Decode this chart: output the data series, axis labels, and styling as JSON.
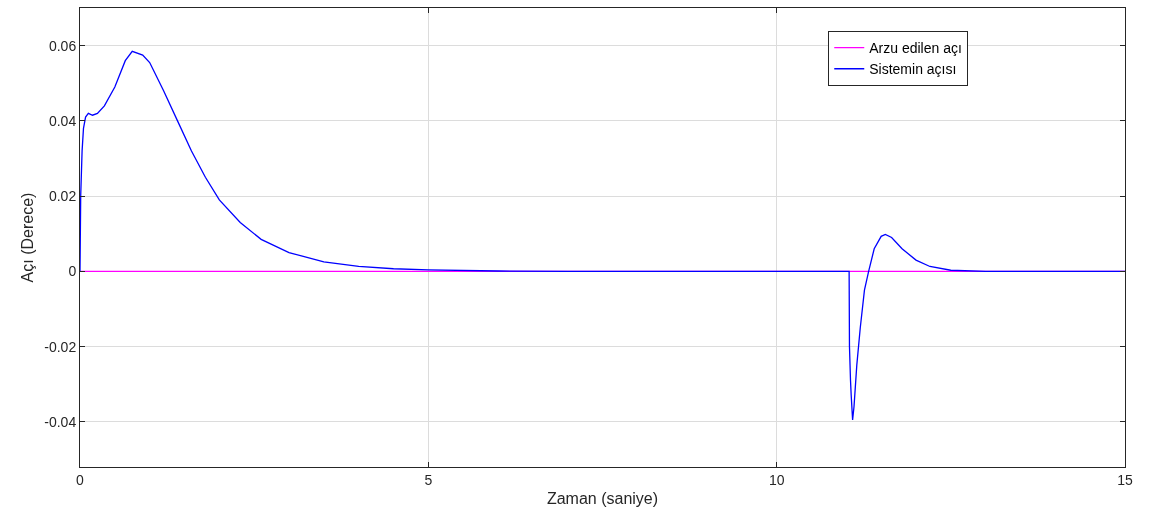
{
  "chart_data": {
    "type": "line",
    "xlabel": "Zaman (saniye)",
    "ylabel": "Açı (Derece)",
    "xlim": [
      0,
      15
    ],
    "xticks": [
      0,
      5,
      10,
      15
    ],
    "ylim": [
      -0.052,
      0.07
    ],
    "yticks": [
      -0.04,
      -0.02,
      0,
      0.02,
      0.04,
      0.06
    ],
    "grid": true,
    "legend": "top right",
    "line_style": "solid",
    "marker": "none",
    "series": [
      {
        "name": "Arzu edilen açı",
        "color": "#ff00ff",
        "x": [
          0,
          15
        ],
        "values": [
          0,
          0
        ]
      },
      {
        "name": "Sistemin açısı",
        "color": "#0000ff",
        "x": [
          0,
          0.01,
          0.03,
          0.05,
          0.08,
          0.12,
          0.18,
          0.25,
          0.35,
          0.5,
          0.65,
          0.75,
          0.9,
          1.0,
          1.2,
          1.4,
          1.6,
          1.8,
          2.0,
          2.3,
          2.6,
          3.0,
          3.5,
          4.0,
          4.5,
          5,
          6,
          7,
          11.04,
          11.045,
          11.06,
          11.07,
          11.09,
          11.11,
          11.15,
          11.2,
          11.26,
          11.32,
          11.4,
          11.5,
          11.56,
          11.65,
          11.8,
          12.0,
          12.2,
          12.5,
          13,
          15
        ],
        "values": [
          0,
          0.02,
          0.032,
          0.038,
          0.041,
          0.042,
          0.0415,
          0.042,
          0.044,
          0.049,
          0.056,
          0.0585,
          0.0575,
          0.0555,
          0.048,
          0.04,
          0.032,
          0.025,
          0.019,
          0.013,
          0.0085,
          0.005,
          0.0025,
          0.0013,
          0.0007,
          0.0004,
          0.0001,
          0,
          0,
          -0.02,
          -0.029,
          -0.033,
          -0.0395,
          -0.036,
          -0.025,
          -0.015,
          -0.005,
          0,
          0.006,
          0.0093,
          0.0098,
          0.009,
          0.006,
          0.003,
          0.0013,
          0.0003,
          0,
          0
        ]
      }
    ]
  }
}
